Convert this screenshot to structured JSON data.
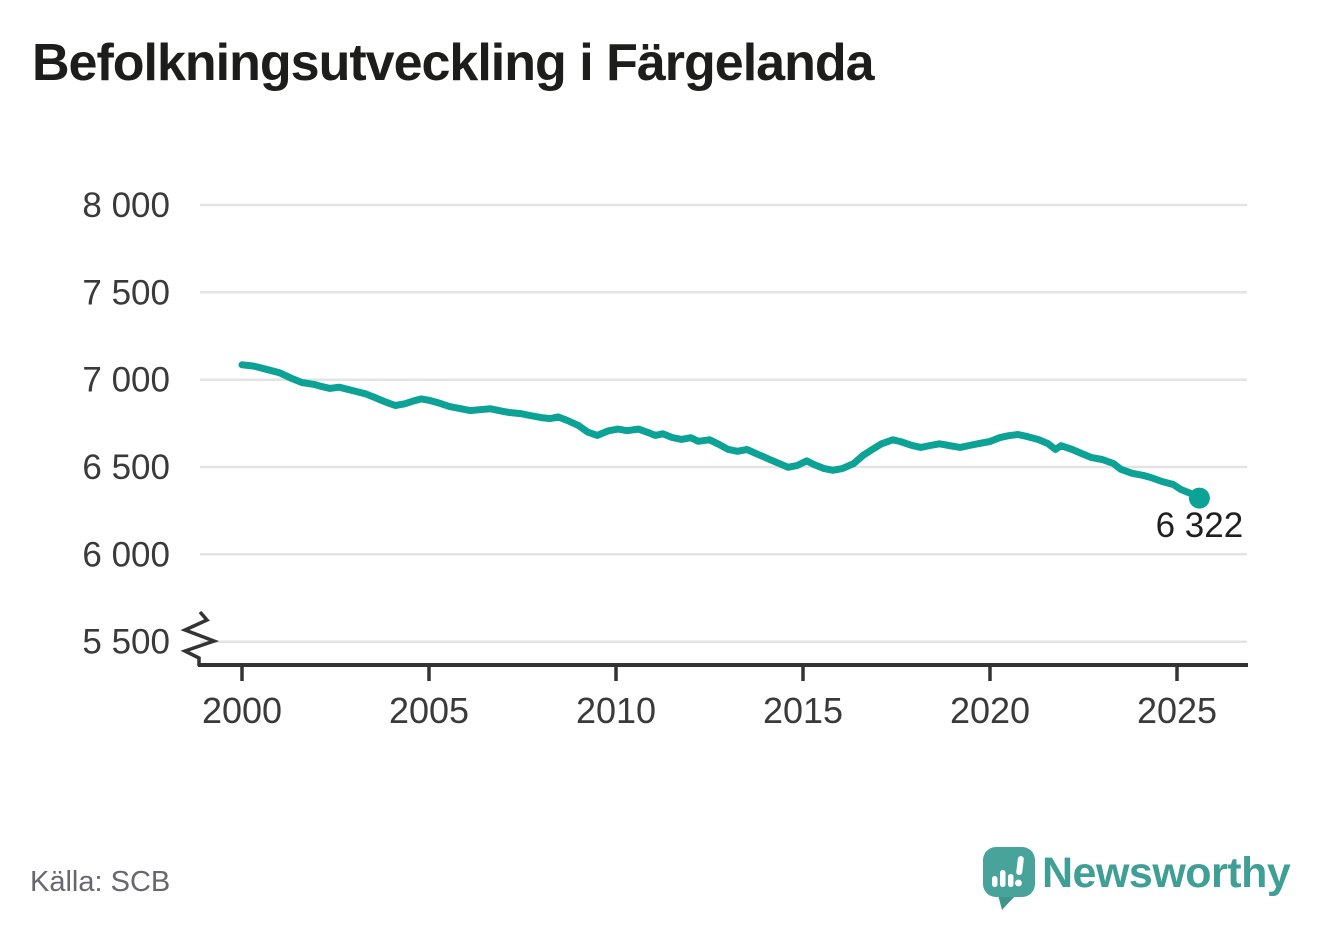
{
  "title": "Befolkningsutveckling i Färgelanda",
  "source": "Källa: SCB",
  "branding": {
    "name": "Newsworthy"
  },
  "colors": {
    "line": "#0ca296",
    "grid": "#e3e3e3",
    "axis": "#333333",
    "tick_label": "#3a3a3a",
    "end_label": "#1f1f1f",
    "title": "#1d1d1b",
    "source_text": "#67676e",
    "brand_teal": "#3f9e95",
    "logo_bubble": "#48a39b",
    "logo_bubble_shade": "#3c948b"
  },
  "chart_data": {
    "type": "line",
    "title": "Befolkningsutveckling i Färgelanda",
    "xlabel": "",
    "ylabel": "",
    "x_ticks": [
      2000,
      2005,
      2010,
      2015,
      2020,
      2025
    ],
    "x_range": [
      2000,
      2026.9
    ],
    "y_ticks": [
      8000,
      7500,
      7000,
      6500,
      6000,
      5500
    ],
    "y_tick_labels": [
      "8 000",
      "7 500",
      "7 000",
      "6 500",
      "6 000",
      "5 500"
    ],
    "ylim": [
      5500,
      8000
    ],
    "axis_break_at_bottom": true,
    "grid": "horizontal",
    "legend": "none",
    "end_label": "6 322",
    "end_value": 6322,
    "series": [
      {
        "name": "Befolkning i Färgelanda",
        "points": [
          [
            2000.0,
            7085
          ],
          [
            2000.3,
            7078
          ],
          [
            2000.6,
            7062
          ],
          [
            2001.0,
            7040
          ],
          [
            2001.35,
            7005
          ],
          [
            2001.6,
            6984
          ],
          [
            2001.95,
            6972
          ],
          [
            2002.15,
            6960
          ],
          [
            2002.35,
            6950
          ],
          [
            2002.6,
            6957
          ],
          [
            2002.95,
            6938
          ],
          [
            2003.3,
            6919
          ],
          [
            2003.55,
            6898
          ],
          [
            2003.85,
            6871
          ],
          [
            2004.1,
            6852
          ],
          [
            2004.35,
            6862
          ],
          [
            2004.6,
            6879
          ],
          [
            2004.8,
            6890
          ],
          [
            2005.0,
            6882
          ],
          [
            2005.3,
            6864
          ],
          [
            2005.55,
            6846
          ],
          [
            2005.85,
            6834
          ],
          [
            2006.1,
            6823
          ],
          [
            2006.35,
            6828
          ],
          [
            2006.65,
            6833
          ],
          [
            2006.9,
            6822
          ],
          [
            2007.15,
            6812
          ],
          [
            2007.45,
            6806
          ],
          [
            2007.7,
            6795
          ],
          [
            2008.0,
            6783
          ],
          [
            2008.25,
            6777
          ],
          [
            2008.45,
            6787
          ],
          [
            2008.7,
            6766
          ],
          [
            2009.0,
            6737
          ],
          [
            2009.25,
            6699
          ],
          [
            2009.5,
            6681
          ],
          [
            2009.8,
            6707
          ],
          [
            2010.05,
            6717
          ],
          [
            2010.3,
            6708
          ],
          [
            2010.6,
            6717
          ],
          [
            2010.85,
            6698
          ],
          [
            2011.05,
            6681
          ],
          [
            2011.25,
            6690
          ],
          [
            2011.5,
            6669
          ],
          [
            2011.75,
            6658
          ],
          [
            2012.0,
            6668
          ],
          [
            2012.2,
            6647
          ],
          [
            2012.5,
            6656
          ],
          [
            2012.75,
            6630
          ],
          [
            2013.0,
            6601
          ],
          [
            2013.25,
            6590
          ],
          [
            2013.5,
            6600
          ],
          [
            2013.8,
            6572
          ],
          [
            2014.1,
            6544
          ],
          [
            2014.35,
            6521
          ],
          [
            2014.6,
            6498
          ],
          [
            2014.85,
            6509
          ],
          [
            2015.1,
            6535
          ],
          [
            2015.3,
            6514
          ],
          [
            2015.55,
            6492
          ],
          [
            2015.8,
            6481
          ],
          [
            2016.05,
            6491
          ],
          [
            2016.35,
            6519
          ],
          [
            2016.6,
            6565
          ],
          [
            2016.85,
            6600
          ],
          [
            2017.1,
            6633
          ],
          [
            2017.4,
            6656
          ],
          [
            2017.6,
            6646
          ],
          [
            2017.9,
            6624
          ],
          [
            2018.15,
            6612
          ],
          [
            2018.4,
            6623
          ],
          [
            2018.65,
            6633
          ],
          [
            2018.9,
            6623
          ],
          [
            2019.2,
            6612
          ],
          [
            2019.45,
            6623
          ],
          [
            2019.7,
            6634
          ],
          [
            2020.0,
            6646
          ],
          [
            2020.25,
            6668
          ],
          [
            2020.5,
            6679
          ],
          [
            2020.75,
            6686
          ],
          [
            2021.0,
            6674
          ],
          [
            2021.3,
            6657
          ],
          [
            2021.55,
            6634
          ],
          [
            2021.75,
            6601
          ],
          [
            2021.9,
            6622
          ],
          [
            2022.2,
            6600
          ],
          [
            2022.45,
            6577
          ],
          [
            2022.7,
            6555
          ],
          [
            2023.0,
            6543
          ],
          [
            2023.3,
            6520
          ],
          [
            2023.5,
            6487
          ],
          [
            2023.8,
            6464
          ],
          [
            2024.1,
            6452
          ],
          [
            2024.3,
            6440
          ],
          [
            2024.6,
            6417
          ],
          [
            2024.9,
            6400
          ],
          [
            2025.1,
            6372
          ],
          [
            2025.35,
            6350
          ],
          [
            2025.6,
            6322
          ]
        ]
      }
    ]
  }
}
